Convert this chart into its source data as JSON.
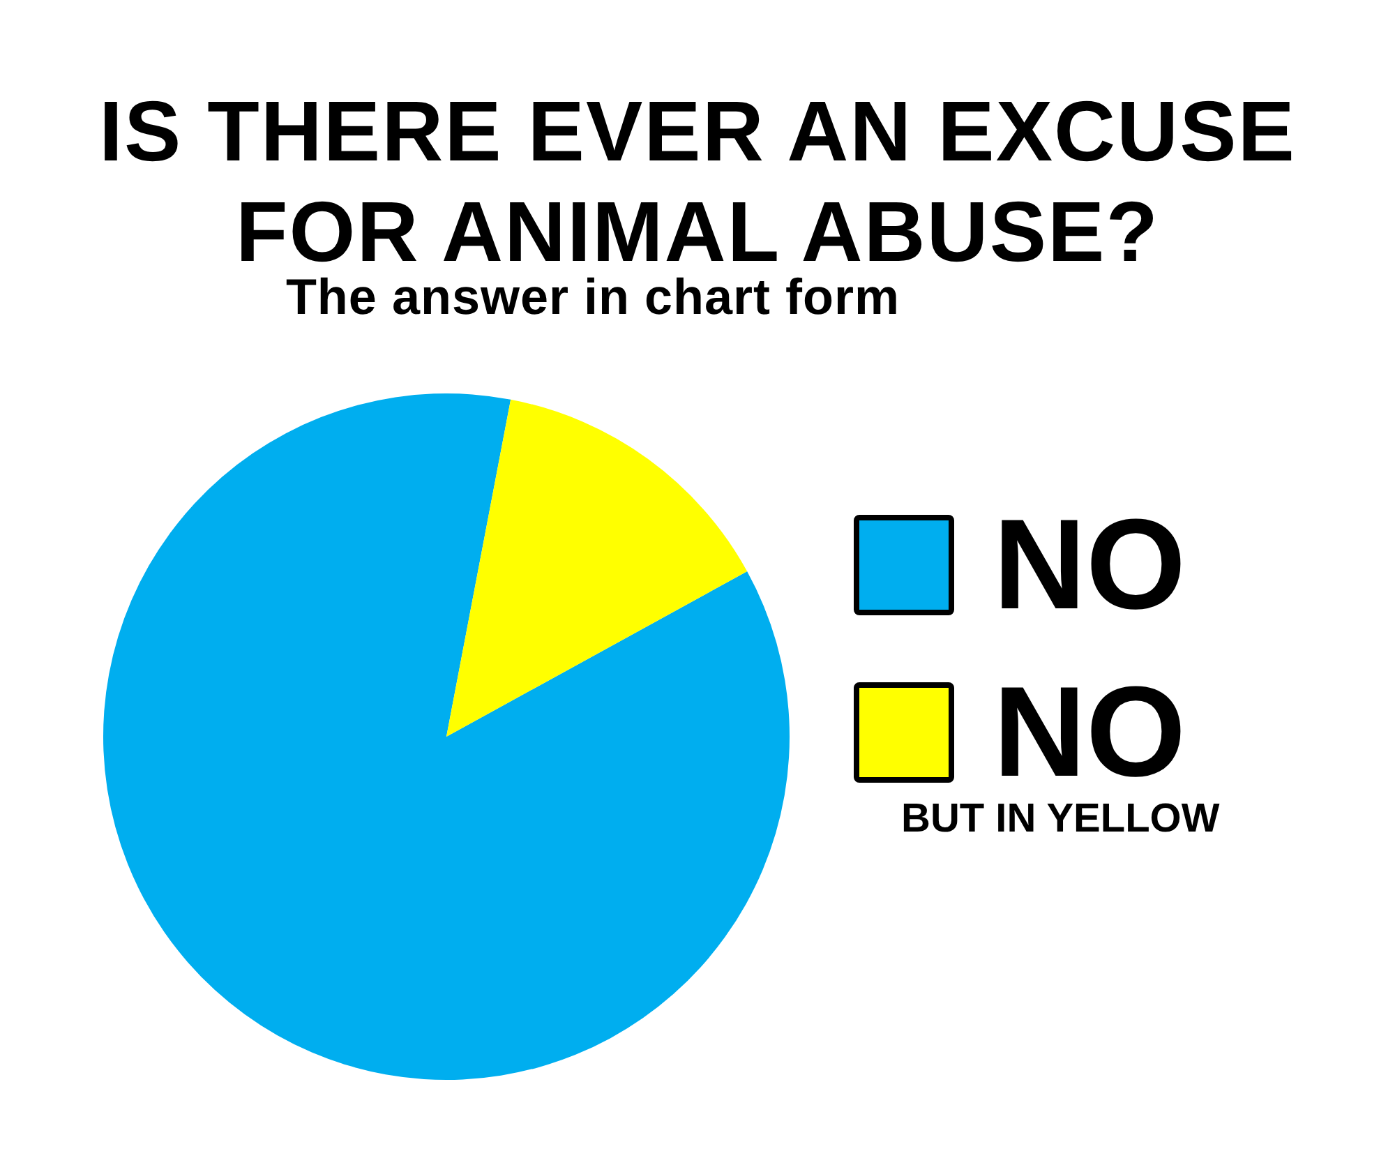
{
  "chart_data": {
    "type": "pie",
    "title": "IS THERE EVER AN EXCUSE FOR ANIMAL ABUSE?",
    "subtitle": "The answer in chart form",
    "categories": [
      "NO",
      "NO"
    ],
    "values": [
      86,
      14
    ],
    "colors": [
      "#00aeef",
      "#ffff00"
    ],
    "legend": "right",
    "annotations": [
      "BUT IN YELLOW"
    ]
  }
}
